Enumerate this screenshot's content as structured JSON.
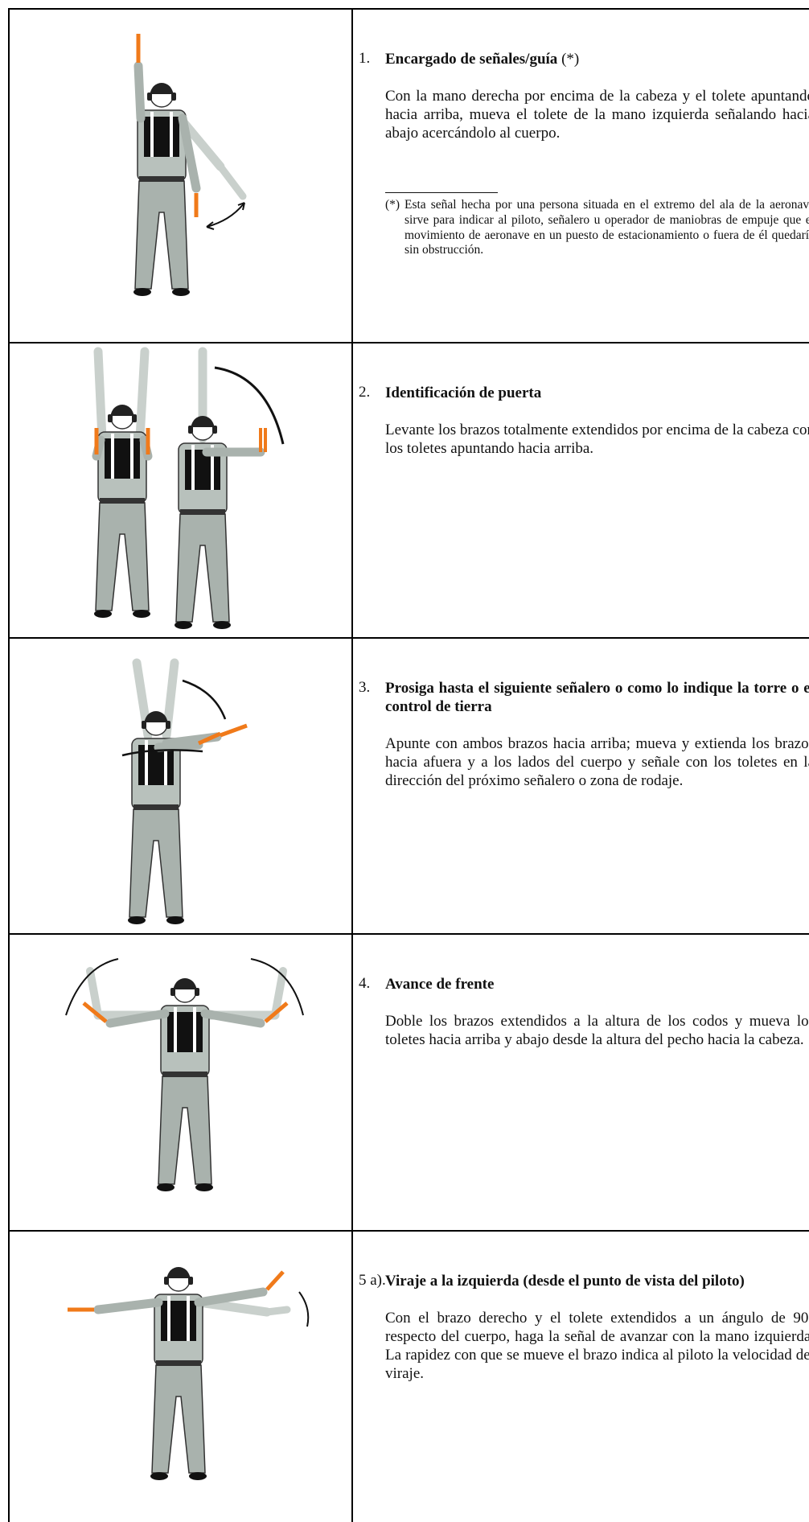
{
  "rows": [
    {
      "number": "1.",
      "title": "Encargado de señales/guía",
      "title_note": "(*)",
      "text": "Con la mano derecha por encima de la cabeza y el tolete apuntando hacia arriba, mueva el tolete de la mano izquierda señalando hacia abajo acercándolo al cuerpo.",
      "footnote": {
        "marker": "(*)",
        "text": "Esta señal hecha por una persona situada en el extremo del ala de la aeronave sirve para indicar al piloto, señalero u operador de maniobras de empuje que el movimiento de aeronave en un puesto de estacionamiento o fuera de él quedaría sin obstrucción."
      }
    },
    {
      "number": "2.",
      "title": "Identificación de puerta",
      "text": "Levante los brazos totalmente extendidos por encima de la cabeza con los toletes apuntando hacia arriba."
    },
    {
      "number": "3.",
      "title": "Prosiga hasta el siguiente señalero o como lo indique la torre o el control de tierra",
      "text": "Apunte con ambos brazos hacia arriba; mueva y extienda los brazos hacia afuera y a los lados del cuerpo y señale con los toletes en la dirección del próximo señalero o zona de rodaje."
    },
    {
      "number": "4.",
      "title": "Avance de frente",
      "text": "Doble los brazos extendidos a la altura de los codos y mueva los toletes hacia arriba y abajo desde la altura del pecho hacia la cabeza."
    },
    {
      "number": "5 a).",
      "title": "Viraje a la izquierda (desde el punto de vista del piloto)",
      "text": "Con el brazo derecho y el tolete extendidos a un ángulo de 90° respecto del cuerpo, haga la señal de avanzar con la mano izquierda. La rapidez con que se mueve el brazo indica al piloto la velocidad del viraje."
    }
  ]
}
